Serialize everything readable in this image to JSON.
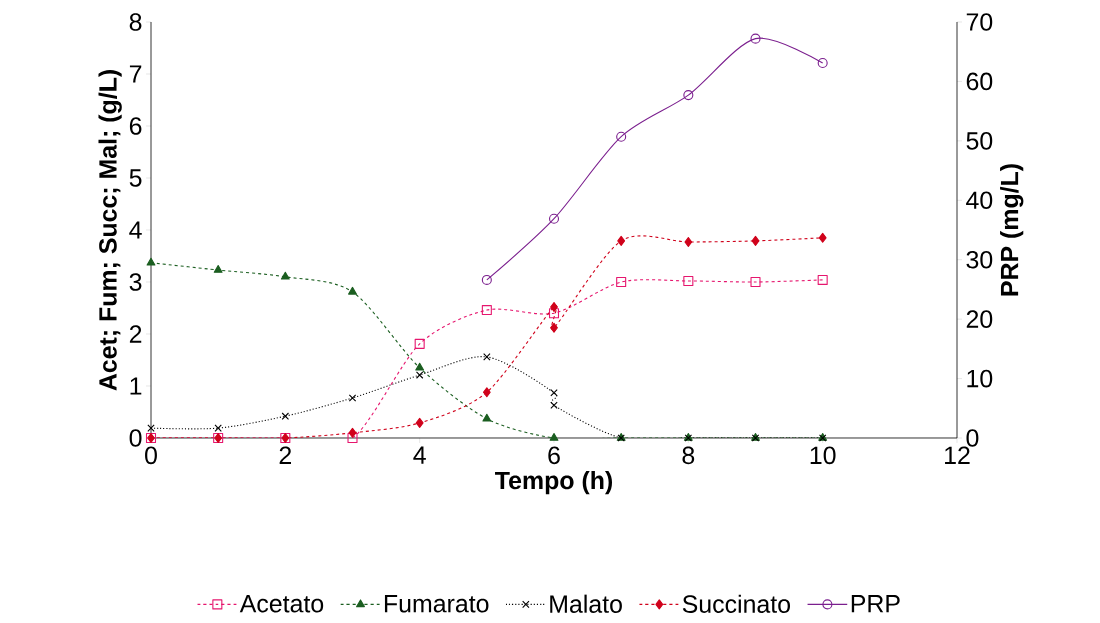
{
  "chart_data": {
    "type": "line",
    "xlabel": "Tempo (h)",
    "ylabel": "Acet; Fum; Succ; Mal;  (g/L)",
    "y2label": "PRP (mg/L)",
    "xlim": [
      0,
      12
    ],
    "xticks": [
      0,
      2,
      4,
      6,
      8,
      10,
      12
    ],
    "ylim": [
      0,
      8
    ],
    "yticks": [
      0,
      1,
      2,
      3,
      4,
      5,
      6,
      7,
      8
    ],
    "y2lim": [
      0,
      70
    ],
    "y2ticks": [
      0,
      10,
      20,
      30,
      40,
      50,
      60,
      70
    ],
    "grid": false,
    "legend": "bottom",
    "series": [
      {
        "name": "Acetato",
        "color": "#e6166e",
        "marker": "square",
        "line_style": "dashed",
        "x": [
          0,
          1,
          2,
          3,
          4,
          5,
          6,
          7,
          8,
          9,
          10
        ],
        "values": [
          0,
          0,
          0,
          0,
          1.81,
          2.46,
          2.4,
          3.0,
          3.02,
          3.0,
          3.04
        ]
      },
      {
        "name": "Fumarato",
        "color": "#1b5e20",
        "marker": "triangle",
        "line_style": "dashed",
        "x": [
          0,
          1,
          2,
          3,
          4,
          5,
          6,
          7,
          8,
          9,
          10
        ],
        "values": [
          3.37,
          3.23,
          3.1,
          2.81,
          1.35,
          0.37,
          0,
          0,
          0,
          0,
          0
        ]
      },
      {
        "name": "Malato",
        "color": "#000000",
        "marker": "cross",
        "line_style": "dotted",
        "x": [
          0,
          1,
          2,
          3,
          4,
          5,
          6,
          6,
          7,
          8,
          9,
          10
        ],
        "values": [
          0.19,
          0.19,
          0.42,
          0.77,
          1.21,
          1.56,
          0.87,
          0.63,
          0,
          0,
          0,
          0
        ]
      },
      {
        "name": "Succinato",
        "color": "#d0021b",
        "marker": "diamond",
        "line_style": "dashed",
        "x": [
          0,
          1,
          2,
          3,
          4,
          5,
          6,
          6,
          7,
          8,
          9,
          10
        ],
        "values": [
          0,
          0,
          0,
          0.1,
          0.29,
          0.88,
          2.52,
          2.12,
          3.79,
          3.77,
          3.79,
          3.85
        ]
      },
      {
        "name": "PRP",
        "color": "#7b1f8e",
        "marker": "circle",
        "line_style": "solid",
        "axis": "y2",
        "x": [
          5,
          6,
          7,
          8,
          9,
          10
        ],
        "values": [
          26.6,
          36.9,
          50.7,
          57.7,
          67.2,
          63.1
        ]
      }
    ]
  }
}
